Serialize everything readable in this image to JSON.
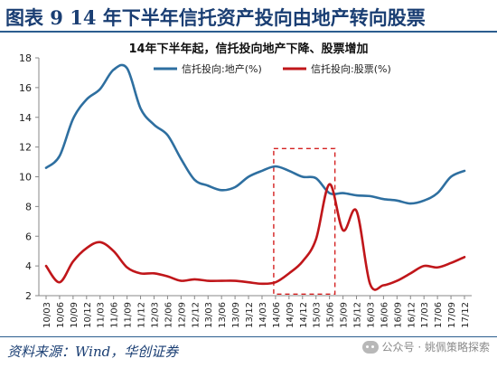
{
  "figure": {
    "title": "图表 9   14 年下半年信托资产投向由地产转向股票",
    "source": "资料来源：Wind，华创证券",
    "watermark": "公众号 · 姚佩策略探索",
    "watermark_icon": "wechat-icon"
  },
  "colors": {
    "series_realestate": "#2e6fa0",
    "series_stocks": "#c0161a",
    "highlight_box": "#d42020",
    "title": "#1a3e73"
  },
  "chart_data": {
    "type": "line",
    "title": "14年下半年起，信托投向地产下降、股票增加",
    "xlabel": "",
    "ylabel": "",
    "ylim": [
      2,
      18
    ],
    "yticks": [
      2,
      4,
      6,
      8,
      10,
      12,
      14,
      16,
      18
    ],
    "grid": false,
    "legend_position": "top",
    "x": [
      "10/03",
      "10/06",
      "10/09",
      "10/12",
      "11/03",
      "11/06",
      "11/09",
      "11/12",
      "12/03",
      "12/06",
      "12/09",
      "12/12",
      "13/03",
      "13/06",
      "13/09",
      "13/12",
      "14/03",
      "14/06",
      "14/09",
      "14/12",
      "15/03",
      "15/06",
      "15/09",
      "15/12",
      "16/03",
      "16/06",
      "16/09",
      "16/12",
      "17/03",
      "17/06",
      "17/09",
      "17/12"
    ],
    "series": [
      {
        "name": "信托投向:地产(%)",
        "values": [
          10.6,
          11.4,
          13.9,
          15.2,
          15.9,
          17.2,
          17.3,
          14.6,
          13.5,
          12.8,
          11.2,
          9.8,
          9.4,
          9.1,
          9.3,
          10.0,
          10.4,
          10.7,
          10.4,
          10.0,
          9.9,
          8.9,
          8.9,
          8.75,
          8.7,
          8.5,
          8.4,
          8.2,
          8.4,
          8.9,
          10.0,
          10.4
        ],
        "color": "#2e6fa0"
      },
      {
        "name": "信托投向:股票(%)",
        "values": [
          4.0,
          2.9,
          4.3,
          5.2,
          5.6,
          5.0,
          3.9,
          3.5,
          3.5,
          3.3,
          3.0,
          3.1,
          3.0,
          3.0,
          3.0,
          2.9,
          2.8,
          2.9,
          3.5,
          4.3,
          5.8,
          9.5,
          6.4,
          7.7,
          2.8,
          2.7,
          3.0,
          3.5,
          4.0,
          3.9,
          4.2,
          4.6
        ],
        "color": "#c0161a"
      }
    ],
    "highlight": {
      "x_start": "14/06",
      "x_end": "15/06",
      "style": "dashed"
    }
  }
}
